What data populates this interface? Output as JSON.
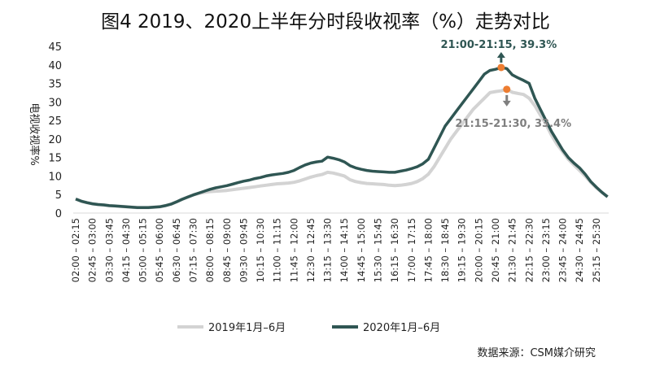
{
  "chart_data": {
    "type": "line",
    "title": "图4  2019、2020上半年分时段收视率（%）走势对比",
    "ylabel": "电视收视率%",
    "xlabel": "",
    "ylim": [
      0,
      45
    ],
    "yticks": [
      0,
      5,
      10,
      15,
      20,
      25,
      30,
      35,
      40,
      45
    ],
    "grid": false,
    "legend_placement": "bottom",
    "x_tick_labels": [
      "02:00 – 02:15",
      "02:45 – 03:00",
      "03:30 – 03:45",
      "04:15 – 04:30",
      "05:00 – 05:15",
      "05:45 – 06:00",
      "06:30 – 06:45",
      "07:15 – 07:30",
      "08:00 – 08:15",
      "08:45 – 09:00",
      "09:30 – 09:45",
      "10:15 – 10:30",
      "11:00 – 11:15",
      "11:45 – 12:00",
      "12:30 – 12:45",
      "13:15 – 13:30",
      "14:00 – 14:15",
      "14:45 – 15:00",
      "15:30 – 15:45",
      "16:15 – 16:30",
      "17:00 – 17:15",
      "17:45 – 18:00",
      "18:30 – 18:45",
      "19:15 – 19:30",
      "20:00 – 20:15",
      "20:45 – 21:00",
      "21:30 – 21:45",
      "22:15 – 22:30",
      "23:00 – 23:15",
      "23:45 – 24:00",
      "24:30 – 24:45",
      "25:15 – 25:30"
    ],
    "series": [
      {
        "name": "2019年1月–6月",
        "color": "#d3d3d3",
        "values": [
          3.8,
          3.2,
          2.8,
          2.5,
          2.3,
          2.2,
          2.0,
          1.9,
          1.8,
          1.7,
          1.6,
          1.5,
          1.5,
          1.5,
          1.6,
          1.7,
          2.0,
          2.4,
          3.0,
          3.7,
          4.3,
          4.9,
          5.3,
          5.6,
          5.8,
          5.9,
          6.0,
          6.1,
          6.3,
          6.5,
          6.7,
          6.9,
          7.1,
          7.3,
          7.5,
          7.7,
          7.9,
          8.0,
          8.1,
          8.3,
          8.7,
          9.2,
          9.7,
          10.1,
          10.4,
          11.0,
          10.8,
          10.4,
          10.0,
          9.0,
          8.5,
          8.2,
          8.0,
          7.9,
          7.8,
          7.7,
          7.5,
          7.4,
          7.5,
          7.7,
          8.0,
          8.5,
          9.3,
          10.5,
          12.5,
          15.0,
          17.5,
          20.0,
          22.0,
          24.0,
          26.0,
          28.0,
          29.5,
          31.0,
          32.5,
          32.8,
          33.0,
          33.4,
          32.6,
          32.3,
          32.0,
          31.0,
          29.0,
          26.5,
          24.0,
          21.0,
          18.5,
          16.5,
          14.5,
          13.0,
          11.5,
          10.0,
          8.3,
          6.8,
          5.6,
          4.4
        ]
      },
      {
        "name": "2020年1月–6月",
        "color": "#2f5653",
        "values": [
          3.8,
          3.2,
          2.8,
          2.5,
          2.3,
          2.2,
          2.0,
          1.9,
          1.8,
          1.7,
          1.6,
          1.5,
          1.5,
          1.5,
          1.6,
          1.7,
          2.0,
          2.4,
          3.0,
          3.7,
          4.3,
          4.9,
          5.4,
          5.9,
          6.4,
          6.8,
          7.1,
          7.4,
          7.8,
          8.2,
          8.6,
          8.9,
          9.3,
          9.6,
          10.0,
          10.3,
          10.5,
          10.7,
          11.0,
          11.5,
          12.3,
          13.0,
          13.5,
          13.8,
          14.0,
          15.1,
          14.8,
          14.4,
          13.8,
          12.8,
          12.2,
          11.8,
          11.5,
          11.3,
          11.2,
          11.1,
          11.0,
          11.0,
          11.3,
          11.6,
          12.0,
          12.5,
          13.3,
          14.5,
          17.5,
          20.5,
          23.5,
          25.5,
          27.5,
          29.5,
          31.5,
          33.5,
          35.5,
          37.5,
          38.5,
          38.8,
          39.3,
          39.0,
          37.3,
          36.5,
          35.8,
          35.0,
          31.0,
          28.0,
          25.0,
          22.0,
          19.5,
          17.0,
          15.0,
          13.5,
          12.2,
          10.5,
          8.5,
          7.0,
          5.6,
          4.4
        ]
      }
    ],
    "annotations": [
      {
        "text": "21:00-21:15, 39.3%",
        "series": 1,
        "index": 76,
        "color": "#2f5653"
      },
      {
        "text": "21:15-21:30,  33.4%",
        "series": 0,
        "index": 77,
        "color": "#7f7f7f"
      }
    ],
    "marker_color": "#ed7d31",
    "source": "数据来源：CSM媒介研究"
  }
}
